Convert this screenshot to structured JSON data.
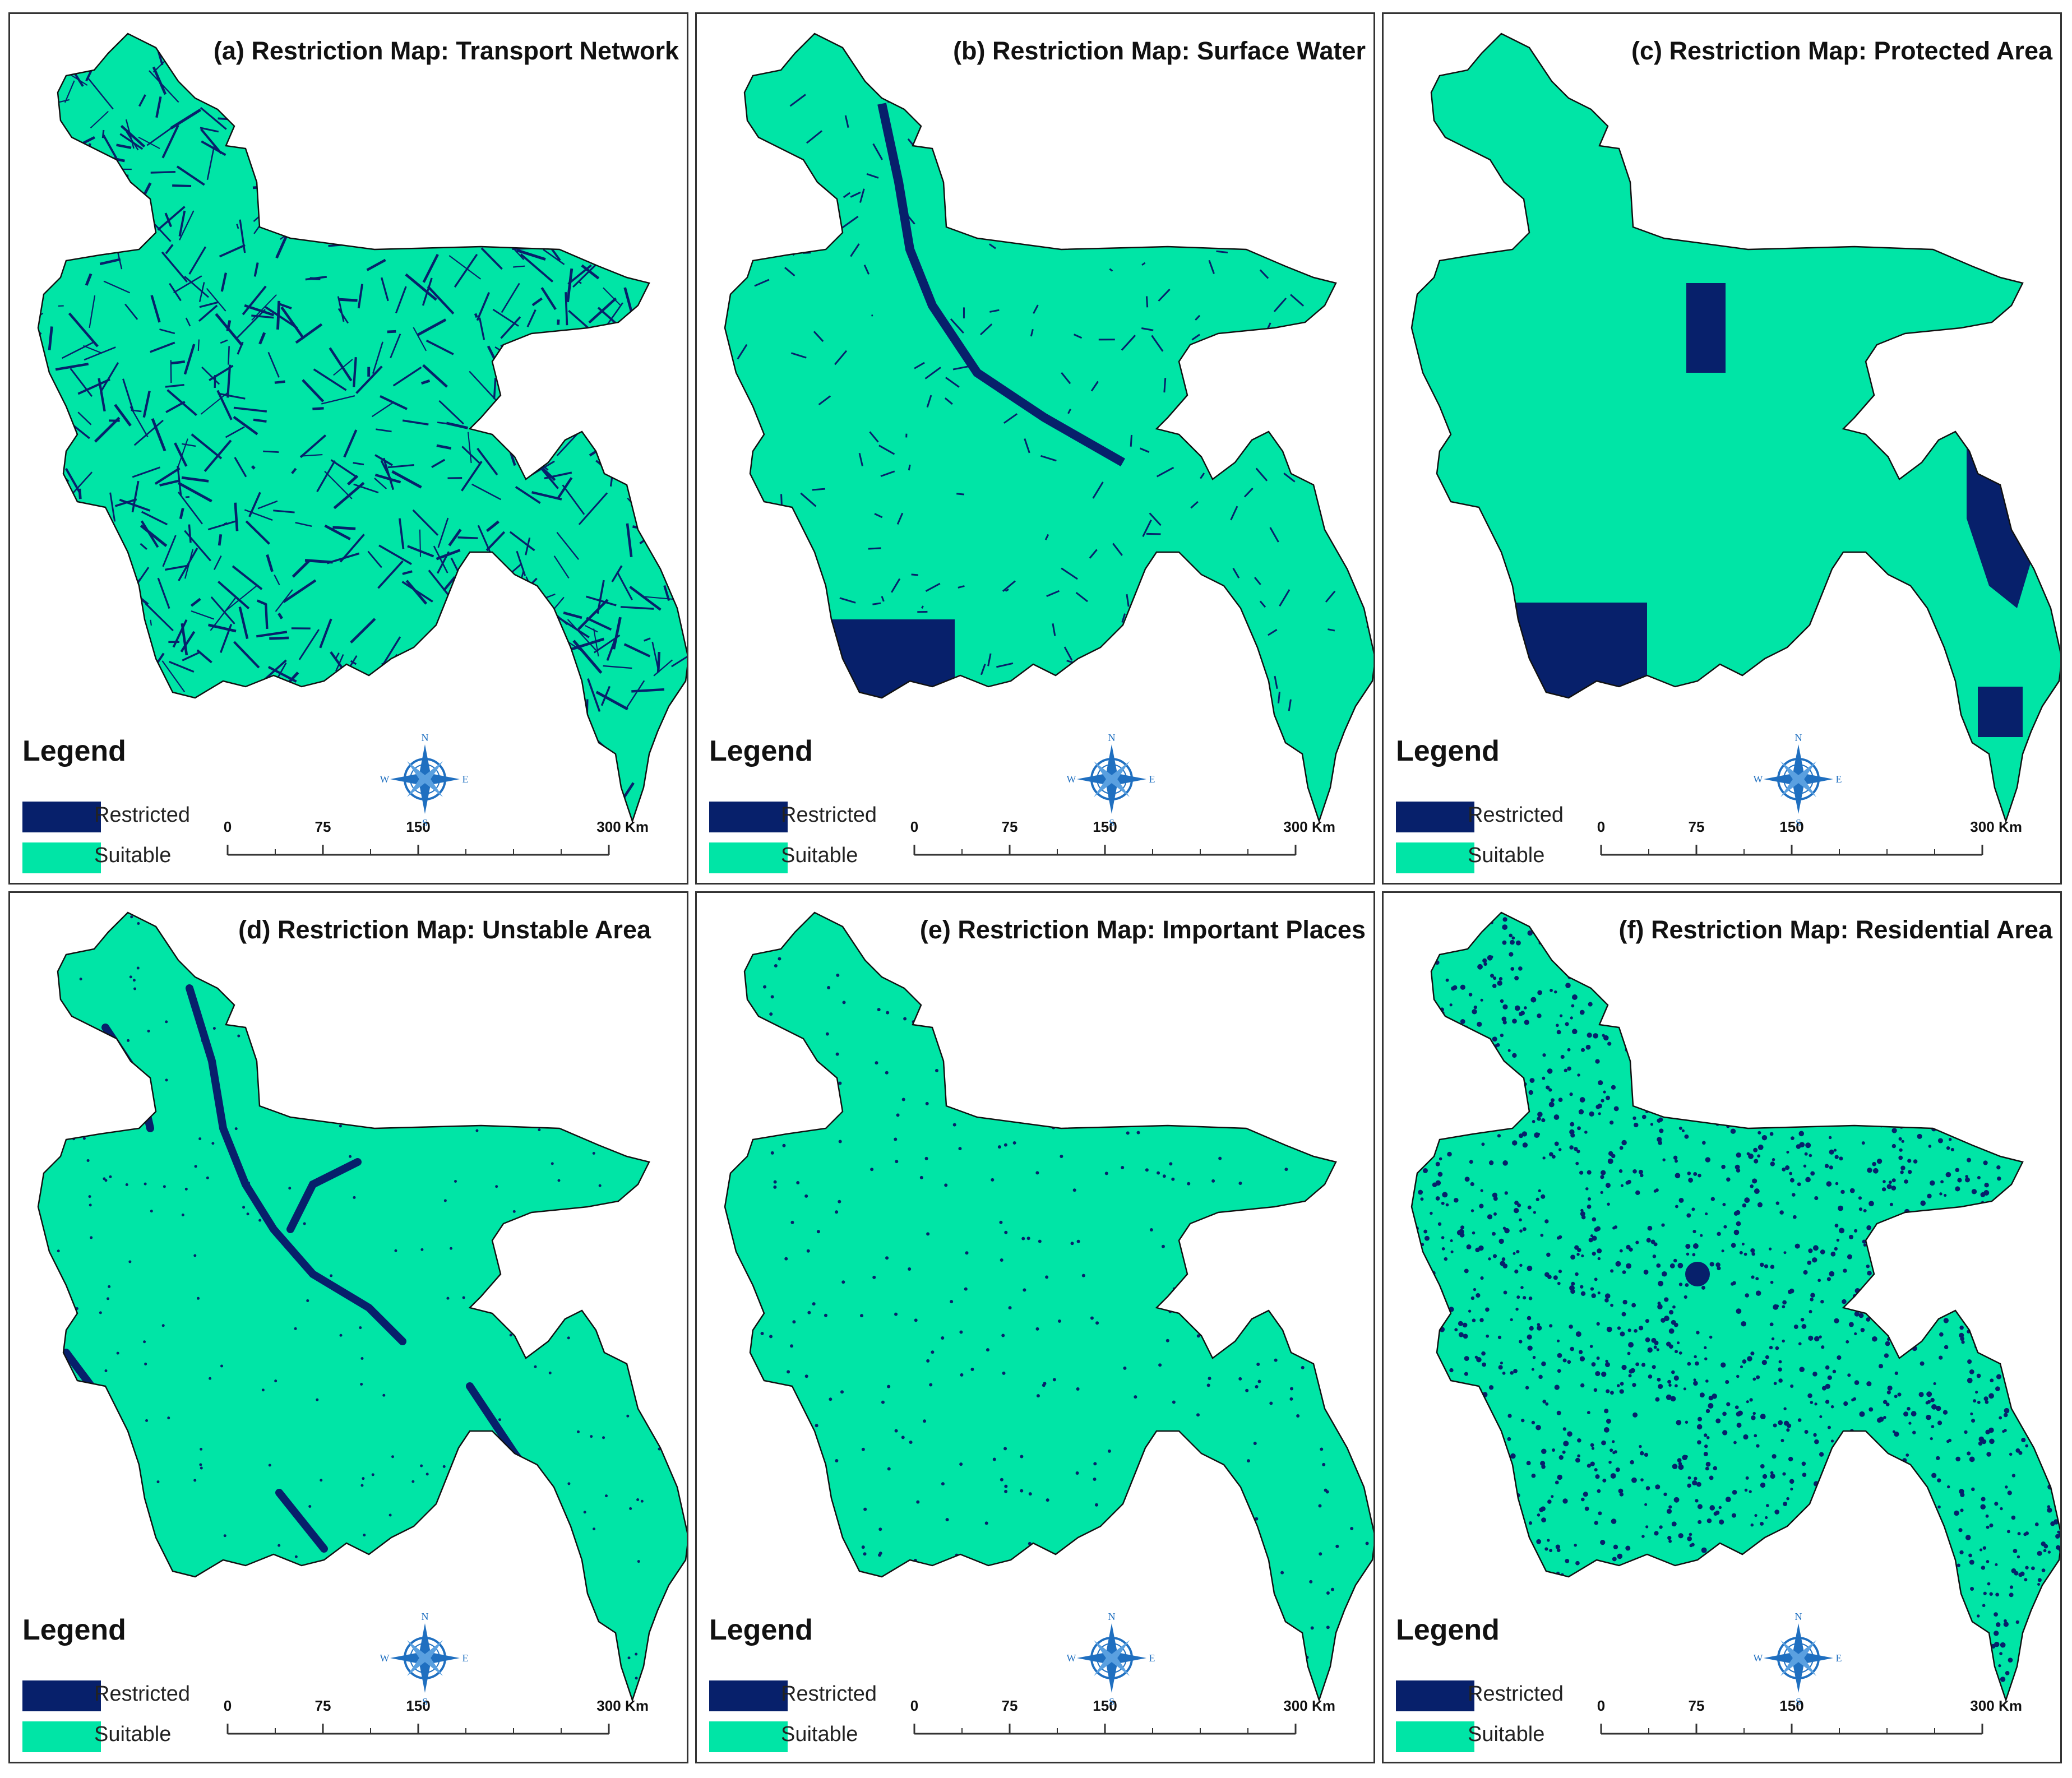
{
  "colors": {
    "restricted": "#07206b",
    "suitable": "#00e5a6",
    "compass": "#1f6fc0"
  },
  "legend": {
    "title": "Legend",
    "restricted": "Restricted",
    "suitable": "Suitable"
  },
  "compass_labels": {
    "n": "N",
    "s": "S",
    "e": "E",
    "w": "W"
  },
  "scale": {
    "ticks": [
      "0",
      "75",
      "150",
      "300"
    ],
    "unit": "Km"
  },
  "panels": [
    {
      "title": "(a) Restriction Map: Transport Network",
      "pattern": "dense-network"
    },
    {
      "title": "(b) Restriction Map: Surface Water",
      "pattern": "rivers-and-wetlands"
    },
    {
      "title": "(c) Restriction Map: Protected Area",
      "pattern": "large-patches"
    },
    {
      "title": "(d) Restriction Map: Unstable Area",
      "pattern": "river-channels"
    },
    {
      "title": "(e) Restriction Map: Important Places",
      "pattern": "sparse-points"
    },
    {
      "title": "(f) Restriction Map: Residential Area",
      "pattern": "dense-points"
    }
  ]
}
